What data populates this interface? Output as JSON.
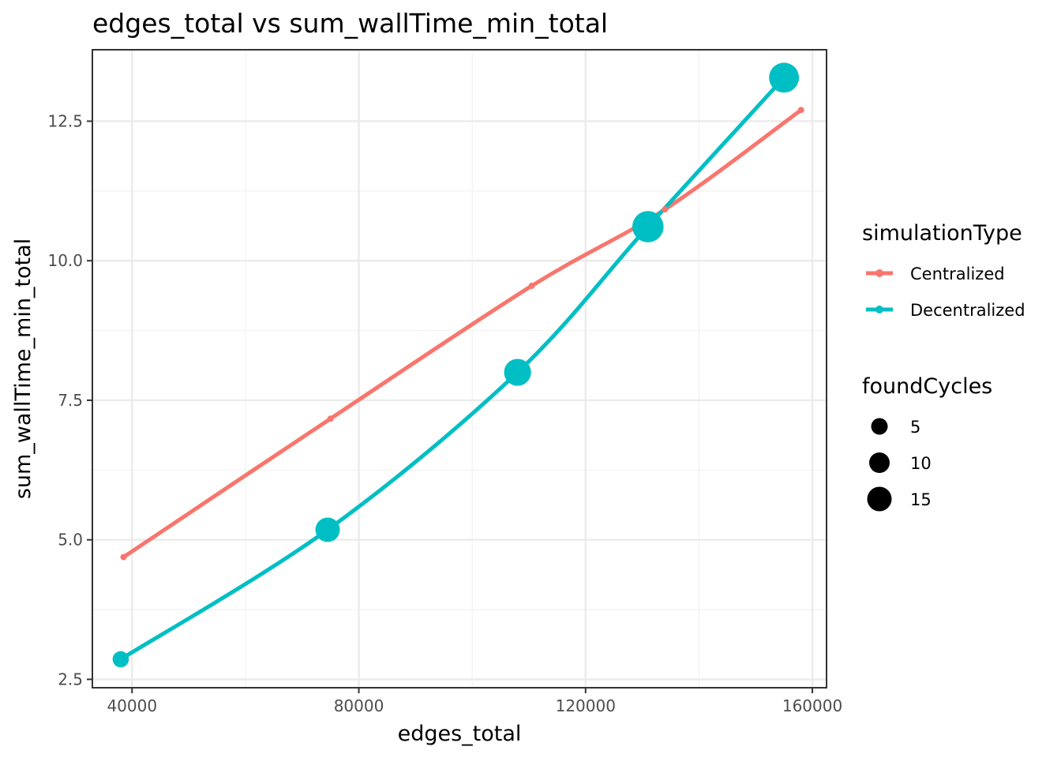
{
  "chart_data": {
    "type": "line",
    "title": "edges_total  vs  sum_wallTime_min_total",
    "xlabel": "edges_total",
    "ylabel": "sum_wallTime_min_total",
    "xlim": [
      33000,
      162500
    ],
    "ylim": [
      2.35,
      13.78
    ],
    "x_ticks": [
      40000,
      80000,
      120000,
      160000
    ],
    "x_tick_labels": [
      "40000",
      "80000",
      "120000",
      "160000"
    ],
    "y_ticks": [
      2.5,
      5.0,
      7.5,
      10.0,
      12.5
    ],
    "y_tick_labels": [
      "2.5",
      "5.0",
      "7.5",
      "10.0",
      "12.5"
    ],
    "grid": true,
    "legend_position": "right",
    "color_legend": {
      "title": "simulationType",
      "entries": [
        "Centralized",
        "Decentralized"
      ]
    },
    "size_legend": {
      "title": "foundCycles",
      "values": [
        5,
        10,
        15
      ],
      "labels": [
        "5",
        "10",
        "15"
      ]
    },
    "series": [
      {
        "name": "Centralized",
        "color": "#F8766D",
        "points": [
          {
            "x": 38500,
            "y": 4.69,
            "size": 0
          },
          {
            "x": 75000,
            "y": 7.17,
            "size": 0
          },
          {
            "x": 110500,
            "y": 9.55,
            "size": 0
          },
          {
            "x": 134000,
            "y": 10.92,
            "size": 0
          },
          {
            "x": 158000,
            "y": 12.7,
            "size": 0
          }
        ]
      },
      {
        "name": "Decentralized",
        "color": "#00BFC4",
        "points": [
          {
            "x": 38000,
            "y": 2.86,
            "size": 3
          },
          {
            "x": 74500,
            "y": 5.18,
            "size": 10
          },
          {
            "x": 108000,
            "y": 8.0,
            "size": 13
          },
          {
            "x": 131000,
            "y": 10.61,
            "size": 19
          },
          {
            "x": 155000,
            "y": 13.28,
            "size": 17
          }
        ]
      }
    ]
  }
}
